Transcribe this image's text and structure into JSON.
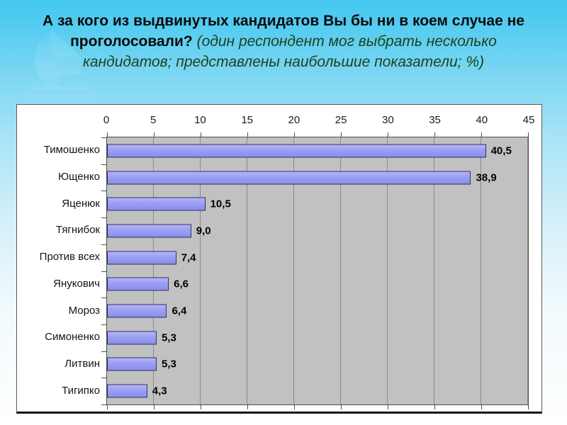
{
  "slide": {
    "title_bold": "А за кого из выдвинутых кандидатов Вы бы ни в коем случае не проголосовали? ",
    "title_note_italic": "(один респондент мог выбрать несколько кандидатов; представлены наибольшие показатели; %)",
    "colors": {
      "background_top": "#45c8ef",
      "background_bottom": "#ffffff",
      "title_text": "#0b0b0b",
      "title_note_text": "#1d421d",
      "bar_fill": "#9b9ef3",
      "bar_border": "#30305f",
      "plot_background": "#c1c1c1",
      "gridline": "#8a8a8a",
      "chart_frame_border": "#5a5a5a"
    }
  },
  "chart_data": {
    "type": "bar",
    "orientation": "horizontal",
    "title": "",
    "xlabel": "",
    "ylabel": "",
    "categories": [
      "Тимошенко",
      "Ющенко",
      "Яценюк",
      "Тягнибок",
      "Против всех",
      "Янукович",
      "Мороз",
      "Симоненко",
      "Литвин",
      "Тигипко"
    ],
    "values": [
      40.5,
      38.9,
      10.5,
      9.0,
      7.4,
      6.6,
      6.4,
      5.3,
      5.3,
      4.3
    ],
    "value_labels": [
      "40,5",
      "38,9",
      "10,5",
      "9,0",
      "7,4",
      "6,6",
      "6,4",
      "5,3",
      "5,3",
      "4,3"
    ],
    "xlim": [
      0,
      45
    ],
    "xticks": [
      0,
      5,
      10,
      15,
      20,
      25,
      30,
      35,
      40,
      45
    ],
    "grid": true,
    "legend": false,
    "axis_position": "top"
  }
}
